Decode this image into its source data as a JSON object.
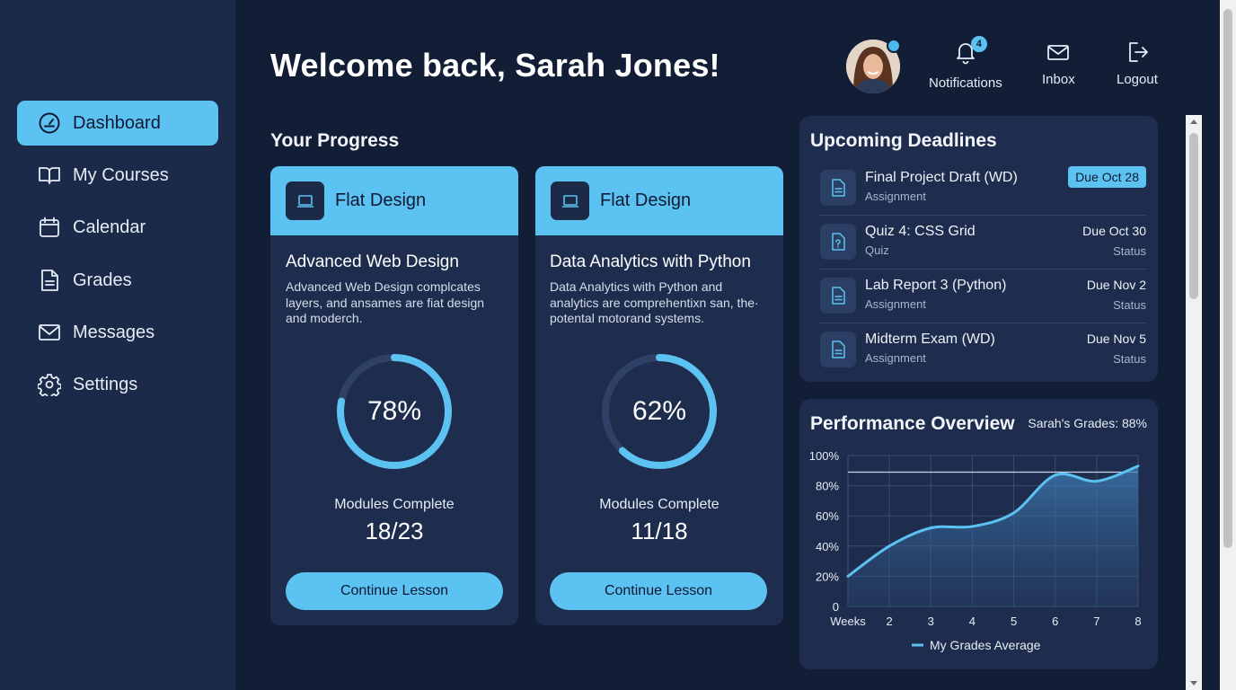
{
  "sidebar": {
    "items": [
      {
        "label": "Dashboard",
        "icon": "gauge-icon"
      },
      {
        "label": "My Courses",
        "icon": "book-icon"
      },
      {
        "label": "Calendar",
        "icon": "calendar-icon"
      },
      {
        "label": "Grades",
        "icon": "document-icon"
      },
      {
        "label": "Messages",
        "icon": "envelope-icon"
      },
      {
        "label": "Settings",
        "icon": "gear-icon"
      }
    ]
  },
  "header": {
    "welcome": "Welcome back, Sarah Jones!",
    "notifications_label": "Notifications",
    "notifications_count": "4",
    "inbox_label": "Inbox",
    "logout_label": "Logout"
  },
  "progress": {
    "title": "Your Progress",
    "cards": [
      {
        "tag": "Flat Design",
        "title": "Advanced Web Design",
        "description": "Advanced Web Design complcates layers, and ansames are fiat design and moderch.",
        "percent": 78,
        "percent_label": "78%",
        "modules_label": "Modules Complete",
        "modules_value": "18/23",
        "button": "Continue Lesson"
      },
      {
        "tag": "Flat Design",
        "title": "Data Analytics with Python",
        "description": "Data Analytics with Python and analytics are comprehentixn san, the· potental motorand systems.",
        "percent": 62,
        "percent_label": "62%",
        "modules_label": "Modules Complete",
        "modules_value": "11/18",
        "button": "Continue Lesson"
      }
    ]
  },
  "deadlines": {
    "title": "Upcoming Deadlines",
    "items": [
      {
        "name": "Final Project Draft (WD)",
        "type": "Assignment",
        "due": "Due Oct 28",
        "status": "",
        "highlight": true
      },
      {
        "name": "Quiz 4: CSS Grid",
        "type": "Quiz",
        "due": "Due Oct 30",
        "status": "Status",
        "highlight": false
      },
      {
        "name": "Lab Report 3 (Python)",
        "type": "Assignment",
        "due": "Due Nov 2",
        "status": "Status",
        "highlight": false
      },
      {
        "name": "Midterm Exam (WD)",
        "type": "Assignment",
        "due": "Due Nov 5",
        "status": "Status",
        "highlight": false
      }
    ]
  },
  "performance": {
    "title": "Performance Overview",
    "subtitle": "Sarah's Grades: 88%"
  },
  "colors": {
    "accent": "#5cc2f2",
    "background": "#121d36",
    "sidebar": "#1b2a48",
    "card": "#1e2d4d"
  },
  "chart_data": {
    "type": "area",
    "title": "Performance Overview",
    "xlabel": "",
    "ylabel": "",
    "x_ticks": [
      "Weeks",
      "2",
      "3",
      "4",
      "5",
      "6",
      "7",
      "8"
    ],
    "y_ticks": [
      "0",
      "20%",
      "40%",
      "60%",
      "80%",
      "100%"
    ],
    "ylim": [
      0,
      100
    ],
    "x": [
      1,
      2,
      3,
      4,
      5,
      6,
      7,
      8
    ],
    "series": [
      {
        "name": "My Grades Average",
        "values": [
          20,
          40,
          52,
          53,
          62,
          87,
          83,
          93
        ]
      }
    ],
    "reference_line": 89,
    "grid": true,
    "legend": "bottom"
  }
}
